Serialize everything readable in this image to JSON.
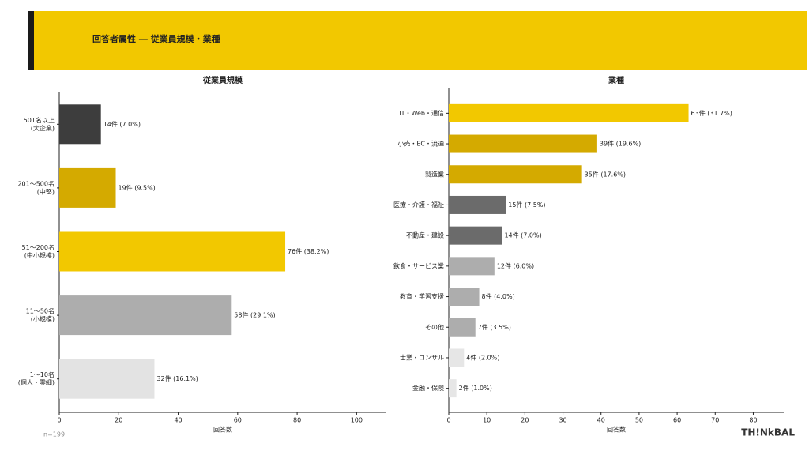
{
  "header": {
    "title": "回答者属性 ― 従業員規模・業種"
  },
  "chart_data": [
    {
      "type": "barh",
      "title": "従業員規模",
      "categories": [
        [
          "501名以上",
          "(大企業)"
        ],
        [
          "201〜500名",
          "(中堅)"
        ],
        [
          "51〜200名",
          "(中小規模)"
        ],
        [
          "11〜50名",
          "(小規模)"
        ],
        [
          "1〜10名",
          "(個人・零細)"
        ]
      ],
      "values": [
        14,
        19,
        76,
        58,
        32
      ],
      "value_labels": [
        "14件 (7.0%)",
        "19件 (9.5%)",
        "76件 (38.2%)",
        "58件 (29.1%)",
        "32件 (16.1%)"
      ],
      "colors": [
        "#3d3d3d",
        "#d4aa00",
        "#f2c800",
        "#adadad",
        "#e3e3e3"
      ],
      "xlim": [
        0,
        110
      ],
      "xticks": [
        0,
        20,
        40,
        60,
        80,
        100
      ],
      "xlabel": "回答数"
    },
    {
      "type": "barh",
      "title": "業種",
      "categories": [
        [
          "IT・Web・通信"
        ],
        [
          "小売・EC・流通"
        ],
        [
          "製造業"
        ],
        [
          "医療・介護・福祉"
        ],
        [
          "不動産・建設"
        ],
        [
          "飲食・サービス業"
        ],
        [
          "教育・学習支援"
        ],
        [
          "その他"
        ],
        [
          "士業・コンサル"
        ],
        [
          "金融・保険"
        ]
      ],
      "values": [
        63,
        39,
        35,
        15,
        14,
        12,
        8,
        7,
        4,
        2
      ],
      "value_labels": [
        "63件 (31.7%)",
        "39件 (19.6%)",
        "35件 (17.6%)",
        "15件 (7.5%)",
        "14件 (7.0%)",
        "12件 (6.0%)",
        "8件 (4.0%)",
        "7件 (3.5%)",
        "4件 (2.0%)",
        "2件 (1.0%)"
      ],
      "colors": [
        "#f2c800",
        "#d4aa00",
        "#d4aa00",
        "#6b6b6b",
        "#6b6b6b",
        "#adadad",
        "#adadad",
        "#adadad",
        "#e6e6e6",
        "#e6e6e6"
      ],
      "xlim": [
        0,
        88
      ],
      "xticks": [
        0,
        10,
        20,
        30,
        40,
        50,
        60,
        70,
        80
      ],
      "xlabel": "回答数"
    }
  ],
  "footer": {
    "note": "n=199",
    "logo": "TH!NkBAL"
  }
}
